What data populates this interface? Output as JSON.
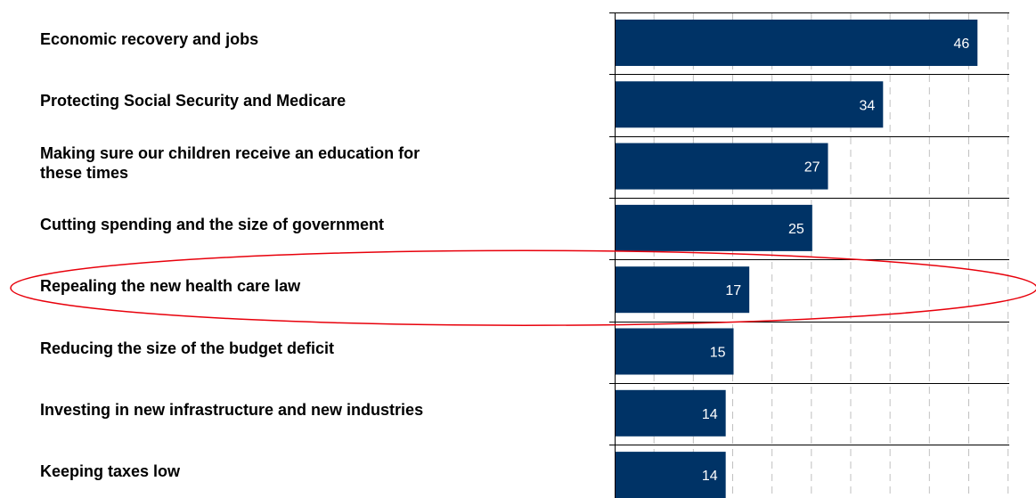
{
  "colors": {
    "bar": "#003366",
    "bar_label": "#ffffff",
    "highlight": "#e8000b",
    "grid": "#c0c0c0",
    "axis": "#000000"
  },
  "chart_data": {
    "type": "bar",
    "orientation": "horizontal",
    "title": "",
    "xlabel": "",
    "ylabel": "",
    "xlim": [
      0,
      50
    ],
    "grid": true,
    "legend": "none",
    "highlighted_category": "Repealing the new health care law",
    "categories": [
      "Economic recovery and jobs",
      "Protecting Social Security and Medicare",
      "Making sure our children receive an education for\nthese times",
      "Cutting spending and the size of government",
      "Repealing the new health care law",
      "Reducing the size of the budget deficit",
      "Investing in new infrastructure and new industries",
      "Keeping taxes low"
    ],
    "values": [
      46,
      34,
      27,
      25,
      17,
      15,
      14,
      14
    ],
    "data_labels": [
      "46",
      "34",
      "27",
      "25",
      "17",
      "15",
      "14",
      "14"
    ]
  }
}
